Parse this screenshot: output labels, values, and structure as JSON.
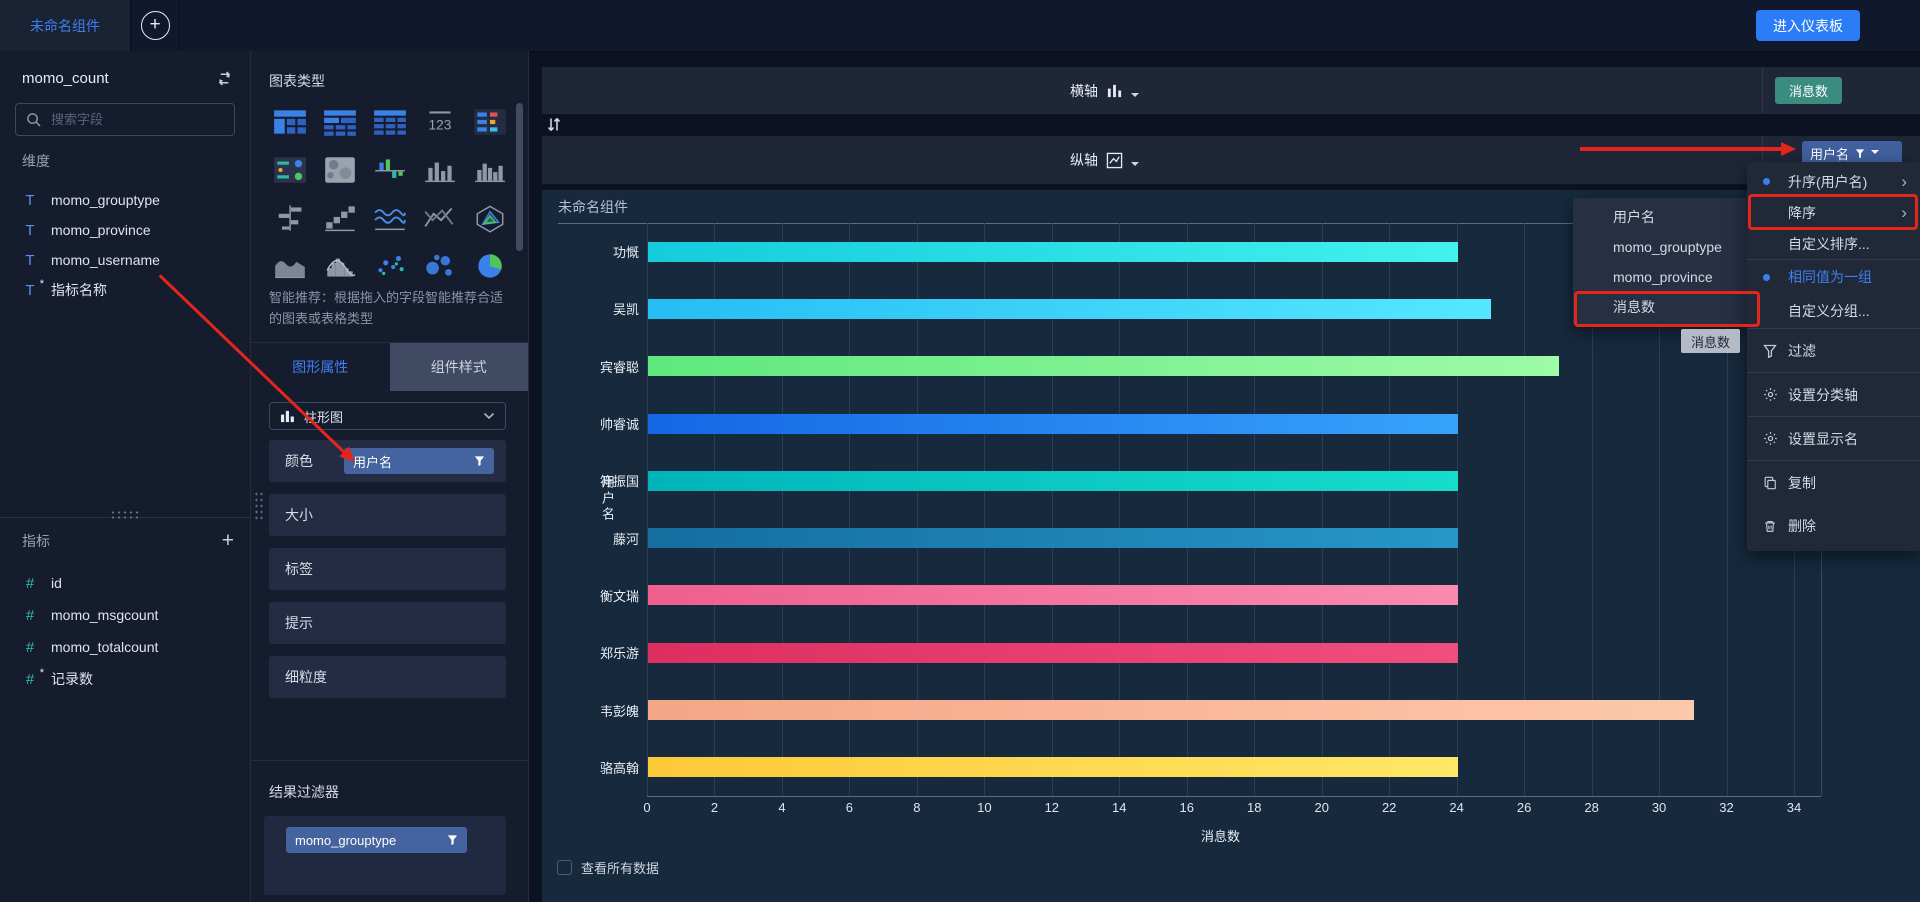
{
  "top_bar": {
    "tab_label": "未命名组件",
    "enter_dashboard_button": "进入仪表板"
  },
  "dataset_panel": {
    "dataset_name": "momo_count",
    "switch_dataset_icon": "swap-icon",
    "search_placeholder": "搜索字段",
    "dimensions_title": "维度",
    "dimension_fields": [
      {
        "name": "momo_grouptype",
        "type": "text",
        "calc": false
      },
      {
        "name": "momo_province",
        "type": "text",
        "calc": false
      },
      {
        "name": "momo_username",
        "type": "text",
        "calc": false
      },
      {
        "name": "指标名称",
        "type": "text",
        "calc": true
      }
    ],
    "metrics_title": "指标",
    "metric_fields": [
      {
        "name": "id",
        "type": "number",
        "calc": false
      },
      {
        "name": "momo_msgcount",
        "type": "number",
        "calc": false
      },
      {
        "name": "momo_totalcount",
        "type": "number",
        "calc": false
      },
      {
        "name": "记录数",
        "type": "number",
        "calc": true
      }
    ]
  },
  "chart_type_panel": {
    "title": "图表类型",
    "icons": [
      "table-pivot",
      "table-header",
      "table-grid",
      "number-123",
      "table-colored",
      "kpi-card",
      "map",
      "bar-colored",
      "bar-chart",
      "bar-chart-2",
      "bar-horizontal",
      "waterfall",
      "wave-lines",
      "line-cross",
      "radar",
      "area",
      "histogram",
      "scatter",
      "bubble",
      "pie"
    ],
    "hint": "智能推荐：根据拖入的字段智能推荐合适的图表或表格类型",
    "tabs": [
      {
        "label": "图形属性",
        "active": true
      },
      {
        "label": "组件样式",
        "active": false
      }
    ],
    "chart_select": {
      "value": "柱形图",
      "icon": "bar-chart-icon"
    },
    "properties": [
      {
        "label": "颜色",
        "chip": "用户名"
      },
      {
        "label": "大小",
        "chip": null
      },
      {
        "label": "标签",
        "chip": null
      },
      {
        "label": "提示",
        "chip": null
      },
      {
        "label": "细粒度",
        "chip": null
      }
    ],
    "result_filter_title": "结果过滤器",
    "result_filter_chip": "momo_grouptype"
  },
  "axes": {
    "x_axis_label": "横轴",
    "x_axis_icon": "column-chart-icon",
    "x_axis_badge": "消息数",
    "swap_axes_icon": "sort-updown-icon",
    "y_axis_label": "纵轴",
    "y_axis_icon": "line-chart-icon",
    "y_axis_chip": "用户名"
  },
  "chart_card": {
    "title": "未命名组件",
    "show_all_data_label": "查看所有数据"
  },
  "chart_data": {
    "type": "bar",
    "orientation": "horizontal",
    "title": "未命名组件",
    "categories": [
      "功慨",
      "吴凯",
      "宾睿聪",
      "帅睿诚",
      "符振国",
      "藤河",
      "衡文瑞",
      "郑乐游",
      "韦彭魄",
      "骆高翰"
    ],
    "values": [
      24,
      25,
      27,
      24,
      24,
      24,
      24,
      24,
      31,
      24
    ],
    "bar_colors": [
      [
        "#14ccdc",
        "#43f1ee"
      ],
      [
        "#26bdf4",
        "#55e7ff"
      ],
      [
        "#5fe87e",
        "#9efba6"
      ],
      [
        "#1467e4",
        "#36a3fb"
      ],
      [
        "#00b4ba",
        "#16dccb"
      ],
      [
        "#156da0",
        "#2697c8"
      ],
      [
        "#ee5f8d",
        "#fa8bb0"
      ],
      [
        "#dd2e60",
        "#f04e7e"
      ],
      [
        "#f4a686",
        "#fdc9ab"
      ],
      [
        "#fcc938",
        "#ffe767"
      ]
    ],
    "xlabel": "消息数",
    "ylabel": "用户名",
    "xlim": [
      0,
      34
    ],
    "x_ticks": [
      0,
      2,
      4,
      6,
      8,
      10,
      12,
      14,
      16,
      18,
      20,
      22,
      24,
      26,
      28,
      30,
      32,
      34
    ],
    "grid": true,
    "legend_position": "none"
  },
  "context_menu": {
    "items": [
      {
        "label": "升序(用户名)",
        "bullet": true,
        "submenu": true,
        "icon": null,
        "active": false,
        "divider_after": false,
        "red_boxed": false
      },
      {
        "label": "降序",
        "bullet": false,
        "submenu": true,
        "icon": null,
        "active": false,
        "divider_after": false,
        "red_boxed": true
      },
      {
        "label": "自定义排序...",
        "bullet": false,
        "submenu": false,
        "icon": null,
        "active": false,
        "divider_after": true,
        "red_boxed": false
      },
      {
        "label": "相同值为一组",
        "bullet": true,
        "submenu": false,
        "icon": null,
        "active": true,
        "divider_after": false,
        "red_boxed": false
      },
      {
        "label": "自定义分组...",
        "bullet": false,
        "submenu": false,
        "icon": null,
        "active": false,
        "divider_after": true,
        "red_boxed": false
      },
      {
        "label": "过滤",
        "bullet": false,
        "submenu": false,
        "icon": "filter-icon",
        "active": false,
        "divider_after": true,
        "red_boxed": false
      },
      {
        "label": "设置分类轴",
        "bullet": false,
        "submenu": false,
        "icon": "gear-icon",
        "active": false,
        "divider_after": true,
        "red_boxed": false
      },
      {
        "label": "设置显示名",
        "bullet": false,
        "submenu": false,
        "icon": "gear-icon",
        "active": false,
        "divider_after": true,
        "red_boxed": false
      },
      {
        "label": "复制",
        "bullet": false,
        "submenu": false,
        "icon": "copy-icon",
        "active": false,
        "divider_after": false,
        "red_boxed": false
      },
      {
        "label": "删除",
        "bullet": false,
        "submenu": false,
        "icon": "trash-icon",
        "active": false,
        "divider_after": false,
        "red_boxed": false
      }
    ]
  },
  "field_submenu": {
    "items": [
      "用户名",
      "momo_grouptype",
      "momo_province",
      "消息数"
    ],
    "red_boxed_item": "消息数"
  },
  "tooltip_badge": "消息数",
  "colors": {
    "accent_blue": "#3f7ef0",
    "button_blue": "#2b7cf6",
    "chip_blue": "#45639e",
    "badge_teal": "#3a8c7e",
    "annotation_red": "#e3251c"
  }
}
